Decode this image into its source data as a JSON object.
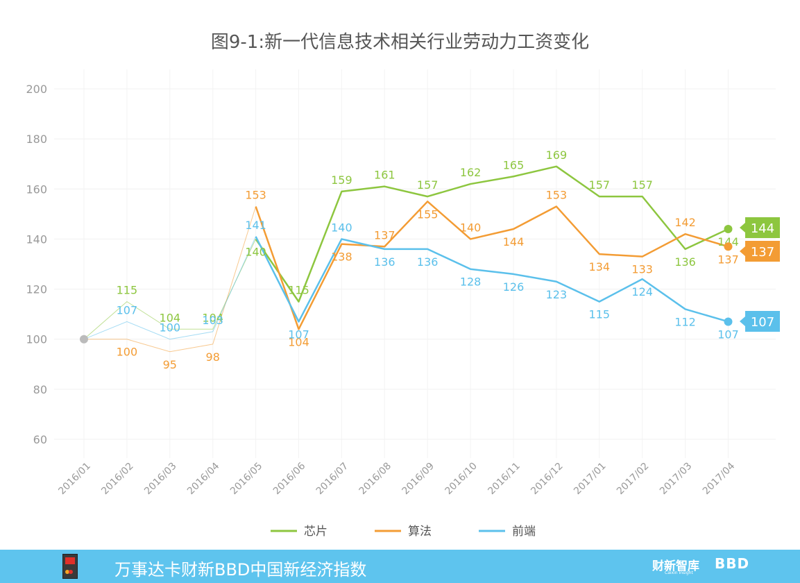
{
  "chart_data": {
    "type": "line",
    "title": "图9-1:新一代信息技术相关行业劳动力工资变化",
    "x": [
      "2016/01",
      "2016/02",
      "2016/03",
      "2016/04",
      "2016/05",
      "2016/06",
      "2016/07",
      "2016/08",
      "2016/09",
      "2016/10",
      "2016/11",
      "2016/12",
      "2017/01",
      "2017/02",
      "2017/03",
      "2017/04"
    ],
    "ylim": [
      60,
      200
    ],
    "yticks": [
      "60",
      "80",
      "100",
      "120",
      "140",
      "160",
      "180",
      "200"
    ],
    "grid": true,
    "legend_position": "bottom",
    "series": [
      {
        "name": "芯片",
        "color": "#8dc63f",
        "values": [
          100,
          115,
          104,
          104,
          140,
          115,
          159,
          161,
          157,
          162,
          165,
          169,
          157,
          157,
          136,
          144
        ],
        "labels": [
          "",
          "115",
          "104",
          "104",
          "140",
          "115",
          "159",
          "161",
          "157",
          "162",
          "165",
          "169",
          "157",
          "157",
          "136",
          "144"
        ]
      },
      {
        "name": "算法",
        "color": "#f39c34",
        "values": [
          100,
          100,
          95,
          98,
          153,
          104,
          138,
          137,
          155,
          140,
          144,
          153,
          134,
          133,
          142,
          137
        ],
        "labels": [
          "",
          "100",
          "95",
          "98",
          "153",
          "104",
          "138",
          "137",
          "155",
          "140",
          "144",
          "153",
          "134",
          "133",
          "142",
          "137"
        ]
      },
      {
        "name": "前端",
        "color": "#5bc0eb",
        "values": [
          100,
          107,
          100,
          103,
          141,
          107,
          140,
          136,
          136,
          128,
          126,
          123,
          115,
          124,
          112,
          107
        ],
        "labels": [
          "",
          "107",
          "100",
          "103",
          "141",
          "107",
          "140",
          "136",
          "136",
          "128",
          "126",
          "123",
          "115",
          "124",
          "112",
          "107"
        ]
      }
    ],
    "start_marker_color": "#bbbbbb"
  },
  "footer": {
    "title": "万事达卡财新BBD中国新经济指数",
    "brand1": "财新智库",
    "brand1_sub": "Caixin Insight",
    "brand2": "BBD"
  }
}
